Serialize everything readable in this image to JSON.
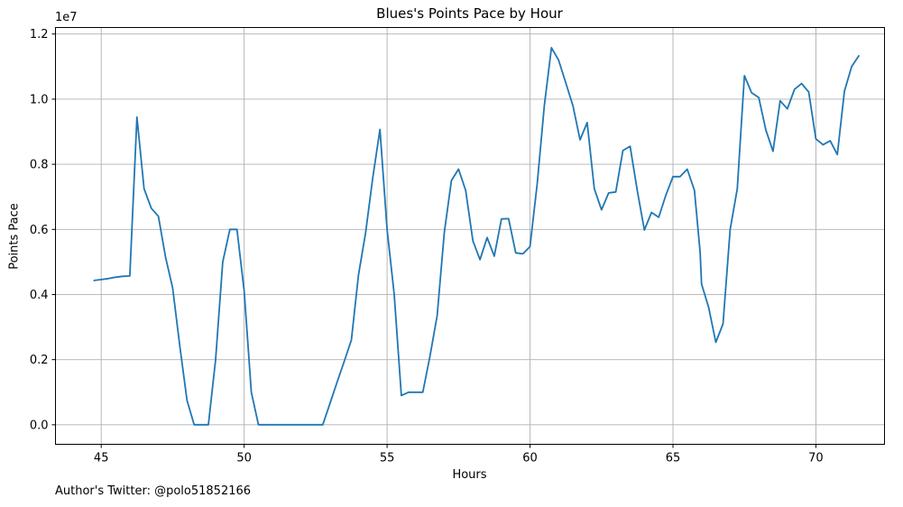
{
  "chart_data": {
    "type": "line",
    "title": "Blues's Points Pace by Hour",
    "xlabel": "Hours",
    "ylabel": "Points Pace",
    "y_offset_label": "1e7",
    "xlim": [
      43.4,
      72.4
    ],
    "ylim": [
      -0.06,
      1.22
    ],
    "x_ticks": [
      45,
      50,
      55,
      60,
      65,
      70
    ],
    "y_ticks": [
      0.0,
      0.2,
      0.4,
      0.6,
      0.8,
      1.0,
      1.2
    ],
    "x_tick_labels": [
      "45",
      "50",
      "55",
      "60",
      "65",
      "70"
    ],
    "y_tick_labels": [
      "0.0",
      "0.2",
      "0.4",
      "0.6",
      "0.8",
      "1.0",
      "1.2"
    ],
    "grid": true,
    "line_color": "#1f77b4",
    "series": [
      {
        "x": [
          44.75,
          45.0,
          45.25,
          45.5,
          45.75,
          46.0,
          46.25,
          46.5,
          46.75,
          47.0,
          47.25,
          47.5,
          47.75,
          48.0,
          48.25,
          48.5,
          48.75,
          49.0,
          49.25,
          49.5,
          49.75,
          50.0,
          50.25,
          50.5,
          50.75,
          51.0,
          51.25,
          51.5,
          51.75,
          52.0,
          52.25,
          52.5,
          52.75,
          53.0,
          53.25,
          53.5,
          53.75,
          54.0,
          54.25,
          54.5,
          54.75,
          55.0,
          55.25,
          55.5,
          55.75,
          56.0,
          56.25,
          56.5,
          56.75,
          57.0,
          57.25,
          57.5,
          57.75,
          58.0,
          58.25,
          58.5,
          58.75,
          59.0,
          59.25,
          59.5,
          59.75,
          60.0,
          60.25,
          60.5,
          60.75,
          61.0,
          61.25,
          61.5,
          61.75,
          62.0,
          62.25,
          62.5,
          62.75,
          63.0,
          63.25,
          63.5,
          63.75,
          64.0,
          64.25,
          64.5,
          64.75,
          65.0,
          65.25,
          65.5,
          65.75,
          65.95,
          66.0,
          66.25,
          66.5,
          66.75,
          67.0,
          67.25,
          67.5,
          67.75,
          68.0,
          68.25,
          68.5,
          68.75,
          69.0,
          69.25,
          69.5,
          69.75,
          70.0,
          70.25,
          70.5,
          70.75,
          71.0,
          71.25,
          71.5
        ],
        "y": [
          0.443,
          0.446,
          0.449,
          0.453,
          0.456,
          0.457,
          0.945,
          0.725,
          0.665,
          0.64,
          0.515,
          0.42,
          0.24,
          0.075,
          0.0,
          0.0,
          0.0,
          0.2,
          0.5,
          0.6,
          0.6,
          0.41,
          0.1,
          0.0,
          0.0,
          0.0,
          0.0,
          0.0,
          0.0,
          0.0,
          0.0,
          0.0,
          0.0,
          0.065,
          0.13,
          0.195,
          0.26,
          0.46,
          0.59,
          0.76,
          0.907,
          0.6,
          0.4,
          0.09,
          0.1,
          0.1,
          0.1,
          0.21,
          0.335,
          0.59,
          0.75,
          0.785,
          0.72,
          0.565,
          0.507,
          0.575,
          0.518,
          0.632,
          0.633,
          0.528,
          0.525,
          0.547,
          0.74,
          0.98,
          1.158,
          1.12,
          1.05,
          0.98,
          0.875,
          0.928,
          0.725,
          0.66,
          0.712,
          0.715,
          0.842,
          0.855,
          0.72,
          0.598,
          0.652,
          0.637,
          0.705,
          0.762,
          0.762,
          0.785,
          0.72,
          0.53,
          0.432,
          0.36,
          0.253,
          0.31,
          0.6,
          0.725,
          1.072,
          1.02,
          1.005,
          0.905,
          0.84,
          0.995,
          0.97,
          1.03,
          1.048,
          1.022,
          0.878,
          0.86,
          0.872,
          0.83,
          1.025,
          1.1,
          1.133
        ]
      }
    ]
  },
  "footer": {
    "text": "Author's Twitter: @polo51852166"
  }
}
